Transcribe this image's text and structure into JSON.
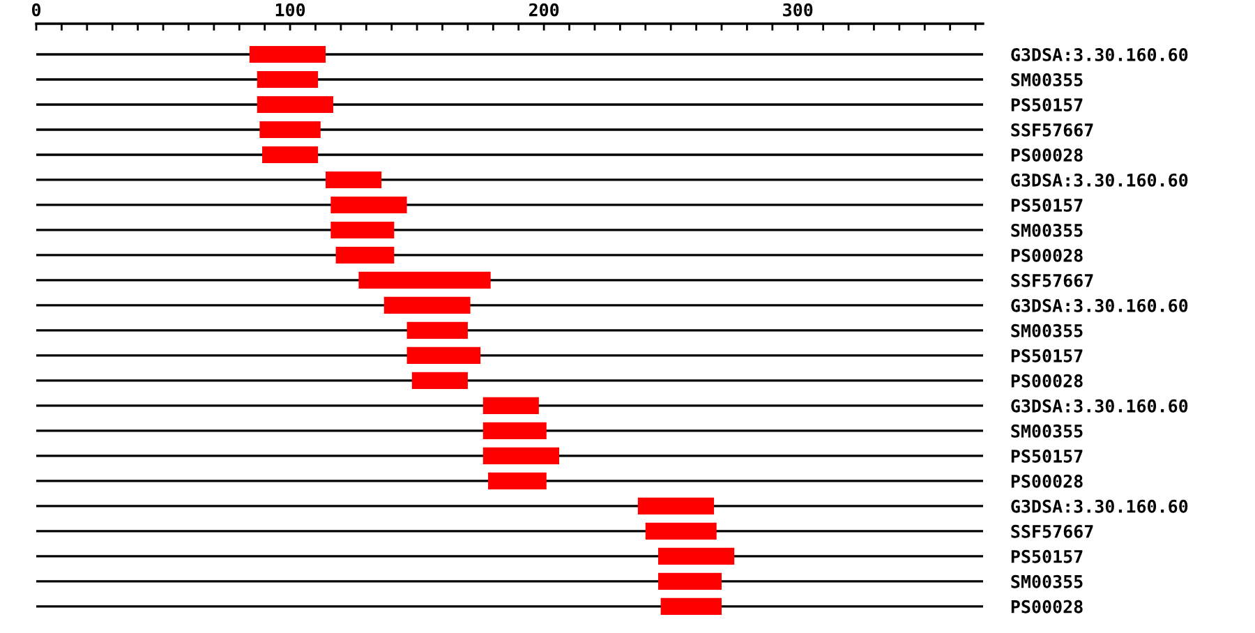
{
  "chart_data": {
    "type": "bar",
    "orientation": "horizontal",
    "categories": [
      "G3DSA:3.30.160.60",
      "SM00355",
      "PS50157",
      "SSF57667",
      "PS00028",
      "G3DSA:3.30.160.60",
      "PS50157",
      "SM00355",
      "PS00028",
      "SSF57667",
      "G3DSA:3.30.160.60",
      "SM00355",
      "PS50157",
      "PS00028",
      "G3DSA:3.30.160.60",
      "SM00355",
      "PS50157",
      "PS00028",
      "G3DSA:3.30.160.60",
      "SSF57667",
      "PS50157",
      "SM00355",
      "PS00028"
    ],
    "base": [
      84,
      87,
      87,
      88,
      89,
      114,
      116,
      116,
      118,
      127,
      137,
      146,
      146,
      148,
      176,
      176,
      176,
      178,
      237,
      240,
      245,
      245,
      246
    ],
    "values": [
      30,
      24,
      30,
      24,
      22,
      22,
      30,
      25,
      23,
      52,
      34,
      24,
      29,
      22,
      22,
      25,
      30,
      23,
      30,
      28,
      30,
      25,
      24
    ],
    "color": "#ff0000",
    "xlim": [
      0,
      373
    ],
    "xticks": [
      0,
      {
        "value": 10,
        "label": null
      },
      {
        "value": 20,
        "label": null
      },
      {
        "value": 30,
        "label": null
      },
      {
        "value": 40,
        "label": null
      },
      {
        "value": 50,
        "label": null
      },
      {
        "value": 60,
        "label": null
      },
      {
        "value": 70,
        "label": null
      },
      {
        "value": 80,
        "label": null
      },
      {
        "value": 90,
        "label": null
      },
      100,
      {
        "value": 110,
        "label": null
      },
      {
        "value": 120,
        "label": null
      },
      {
        "value": 130,
        "label": null
      },
      {
        "value": 140,
        "label": null
      },
      {
        "value": 150,
        "label": null
      },
      {
        "value": 160,
        "label": null
      },
      {
        "value": 170,
        "label": null
      },
      {
        "value": 180,
        "label": null
      },
      {
        "value": 190,
        "label": null
      },
      200,
      {
        "value": 210,
        "label": null
      },
      {
        "value": 220,
        "label": null
      },
      {
        "value": 230,
        "label": null
      },
      {
        "value": 240,
        "label": null
      },
      {
        "value": 250,
        "label": null
      },
      {
        "value": 260,
        "label": null
      },
      {
        "value": 270,
        "label": null
      },
      {
        "value": 280,
        "label": null
      },
      {
        "value": 290,
        "label": null
      },
      300,
      {
        "value": 310,
        "label": null
      },
      {
        "value": 320,
        "label": null
      },
      {
        "value": 330,
        "label": null
      },
      {
        "value": 340,
        "label": null
      },
      {
        "value": 350,
        "label": null
      },
      {
        "value": 360,
        "label": null
      },
      {
        "value": 370,
        "label": null
      }
    ],
    "grid": "y"
  }
}
